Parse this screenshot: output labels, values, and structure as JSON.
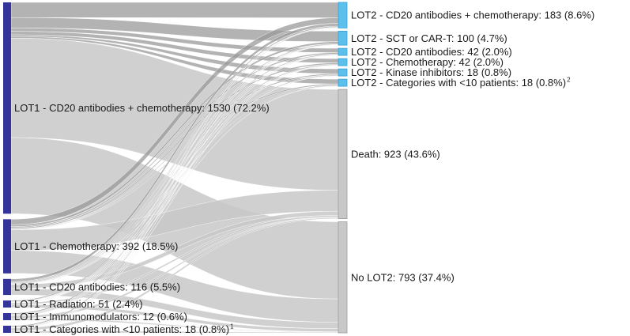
{
  "chart_data": {
    "type": "sankey",
    "colors": {
      "source_node": "#35349a",
      "target_lot2": "#5bc0eb",
      "target_other": "#c8c8c8",
      "link": "#c8c8c8",
      "link_to_lot2": "#9a9a9a"
    },
    "sources": [
      {
        "id": "s0",
        "label": "LOT1 - CD20 antibodies + chemotherapy: 1530 (72.2%)",
        "value": 1530
      },
      {
        "id": "s1",
        "label": "LOT1 - Chemotherapy: 392 (18.5%)",
        "value": 392
      },
      {
        "id": "s2",
        "label": "LOT1 - CD20 antibodies: 116 (5.5%)",
        "value": 116
      },
      {
        "id": "s3",
        "label": "LOT1 - Radiation: 51 (2.4%)",
        "value": 51
      },
      {
        "id": "s4",
        "label": "LOT1 - Immunomodulators: 12 (0.6%)",
        "value": 12
      },
      {
        "id": "s5",
        "label": "LOT1 - Categories with <10 patients: 18 (0.8%)",
        "value": 18,
        "sup": "1"
      }
    ],
    "targets": [
      {
        "id": "t0",
        "label": "LOT2 - CD20 antibodies + chemotherapy: 183 (8.6%)",
        "value": 183,
        "kind": "lot2"
      },
      {
        "id": "t1",
        "label": "LOT2 - SCT or CAR-T: 100 (4.7%)",
        "value": 100,
        "kind": "lot2"
      },
      {
        "id": "t2",
        "label": "LOT2 - CD20 antibodies: 42 (2.0%)",
        "value": 42,
        "kind": "lot2"
      },
      {
        "id": "t3",
        "label": "LOT2 - Chemotherapy: 42 (2.0%)",
        "value": 42,
        "kind": "lot2"
      },
      {
        "id": "t4",
        "label": "LOT2 - Kinase inhibitors: 18 (0.8%)",
        "value": 18,
        "kind": "lot2"
      },
      {
        "id": "t5",
        "label": "LOT2 - Categories with <10 patients: 18 (0.8%)",
        "value": 18,
        "kind": "lot2",
        "sup": "2"
      },
      {
        "id": "t6",
        "label": "Death: 923 (43.6%)",
        "value": 923,
        "kind": "other"
      },
      {
        "id": "t7",
        "label": "No LOT2: 793 (37.4%)",
        "value": 793,
        "kind": "other"
      }
    ],
    "links": [
      [
        "s0",
        "t0",
        110
      ],
      [
        "s0",
        "t1",
        75
      ],
      [
        "s0",
        "t2",
        25
      ],
      [
        "s0",
        "t3",
        25
      ],
      [
        "s0",
        "t4",
        12
      ],
      [
        "s0",
        "t5",
        12
      ],
      [
        "s0",
        "t6",
        720
      ],
      [
        "s0",
        "t7",
        551
      ],
      [
        "s1",
        "t0",
        40
      ],
      [
        "s1",
        "t1",
        14
      ],
      [
        "s1",
        "t2",
        8
      ],
      [
        "s1",
        "t3",
        8
      ],
      [
        "s1",
        "t4",
        3
      ],
      [
        "s1",
        "t5",
        3
      ],
      [
        "s1",
        "t6",
        150
      ],
      [
        "s1",
        "t7",
        166
      ],
      [
        "s2",
        "t0",
        20
      ],
      [
        "s2",
        "t1",
        6
      ],
      [
        "s2",
        "t2",
        5
      ],
      [
        "s2",
        "t3",
        5
      ],
      [
        "s2",
        "t4",
        2
      ],
      [
        "s2",
        "t5",
        2
      ],
      [
        "s2",
        "t6",
        30
      ],
      [
        "s2",
        "t7",
        46
      ],
      [
        "s3",
        "t0",
        8
      ],
      [
        "s3",
        "t1",
        3
      ],
      [
        "s3",
        "t2",
        2
      ],
      [
        "s3",
        "t3",
        2
      ],
      [
        "s3",
        "t4",
        1
      ],
      [
        "s3",
        "t5",
        1
      ],
      [
        "s3",
        "t6",
        12
      ],
      [
        "s3",
        "t7",
        22
      ],
      [
        "s4",
        "t0",
        2
      ],
      [
        "s4",
        "t1",
        1
      ],
      [
        "s4",
        "t2",
        1
      ],
      [
        "s4",
        "t3",
        1
      ],
      [
        "s4",
        "t6",
        4
      ],
      [
        "s4",
        "t7",
        3
      ],
      [
        "s5",
        "t0",
        3
      ],
      [
        "s5",
        "t1",
        1
      ],
      [
        "s5",
        "t2",
        1
      ],
      [
        "s5",
        "t3",
        1
      ],
      [
        "s5",
        "t6",
        7
      ],
      [
        "s5",
        "t7",
        5
      ]
    ]
  }
}
